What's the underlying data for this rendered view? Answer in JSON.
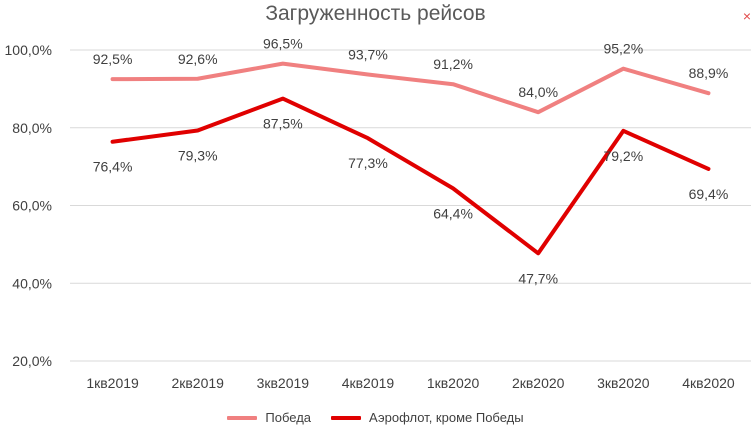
{
  "chart_data": {
    "type": "line",
    "title": "Загруженность рейсов",
    "categories": [
      "1кв2019",
      "2кв2019",
      "3кв2019",
      "4кв2019",
      "1кв2020",
      "2кв2020",
      "3кв2020",
      "4кв2020"
    ],
    "ylim": [
      20,
      100
    ],
    "yticks": [
      "20,0%",
      "40,0%",
      "60,0%",
      "80,0%",
      "100,0%"
    ],
    "ytick_values": [
      20,
      40,
      60,
      80,
      100
    ],
    "grid": true,
    "legend_position": "bottom",
    "series": [
      {
        "name": "Победа",
        "color": "#f08080",
        "values": [
          92.5,
          92.6,
          96.5,
          93.7,
          91.2,
          84.0,
          95.2,
          88.9
        ],
        "labels": [
          "92,5%",
          "92,6%",
          "96,5%",
          "93,7%",
          "91,2%",
          "84,0%",
          "95,2%",
          "88,9%"
        ],
        "label_position": "above"
      },
      {
        "name": "Аэрофлот, кроме Победы",
        "color": "#e00000",
        "values": [
          76.4,
          79.3,
          87.5,
          77.3,
          64.4,
          47.7,
          79.2,
          69.4
        ],
        "labels": [
          "76,4%",
          "79,3%",
          "87,5%",
          "77,3%",
          "64,4%",
          "47,7%",
          "79,2%",
          "69,4%"
        ],
        "label_position": "below"
      }
    ]
  },
  "corner_mark": "×"
}
